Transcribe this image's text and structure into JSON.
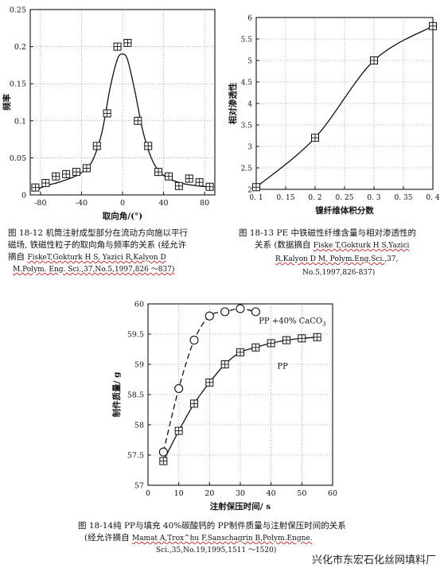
{
  "chart_data": [
    {
      "type": "line",
      "ylabel": "频率",
      "xlabel": "取向角/(°)",
      "xlim": [
        -90,
        90
      ],
      "ylim": [
        0,
        0.25
      ],
      "xticks": [
        -80,
        -40,
        0,
        40,
        80
      ],
      "yticks": [
        0,
        0.05,
        0.1,
        0.15,
        0.2,
        0.25
      ],
      "xtick_labels": [
        "-80",
        "-40",
        "0",
        "40",
        "80"
      ],
      "ytick_labels": [
        "0",
        "0.05",
        "0.1",
        "0.15",
        "0.2",
        "0.25"
      ],
      "series": [
        {
          "marker": "square-cross",
          "x": [
            -85,
            -75,
            -65,
            -55,
            -45,
            -35,
            -25,
            -15,
            -5,
            5,
            15,
            25,
            35,
            45,
            55,
            65,
            75,
            85
          ],
          "y": [
            0.01,
            0.016,
            0.025,
            0.028,
            0.031,
            0.036,
            0.066,
            0.11,
            0.2,
            0.205,
            0.1,
            0.066,
            0.031,
            0.025,
            0.012,
            0.022,
            0.017,
            0.011
          ]
        }
      ],
      "curve": {
        "x": [
          -88,
          -75,
          -60,
          -45,
          -35,
          -28,
          -20,
          -12,
          -5,
          0,
          5,
          12,
          20,
          28,
          35,
          45,
          60,
          75,
          88
        ],
        "y": [
          0.005,
          0.012,
          0.018,
          0.026,
          0.036,
          0.05,
          0.085,
          0.145,
          0.183,
          0.19,
          0.182,
          0.14,
          0.085,
          0.05,
          0.033,
          0.022,
          0.015,
          0.012,
          0.01
        ]
      },
      "caption": {
        "lines": [
          "图 18-12 机筒注射成型部分在流动方向施以平行",
          "磁场, 铁磁性粒子的取向角与频率的关系 (经允许",
          "摘自"
        ],
        "ref_underlined": "FiskeT,Gokturk H S, Yazici R,Kalyon D",
        "ref_line2": "M.Polym. Eng. Sci.,37,No.5,1997,826 ～837)"
      }
    },
    {
      "type": "line",
      "ylabel": "相对渗透性",
      "xlabel": "镍纤维体积分数",
      "xlim": [
        0.1,
        0.4
      ],
      "ylim": [
        2,
        6
      ],
      "xticks": [
        0.1,
        0.15,
        0.2,
        0.25,
        0.3,
        0.35,
        0.4
      ],
      "yticks": [
        2,
        2.5,
        3,
        3.5,
        4,
        4.5,
        5,
        5.5,
        6
      ],
      "xtick_labels": [
        "0. 1",
        "0. 15",
        "0. 2",
        "0. 25",
        "0. 3",
        "0. 35",
        "0. 4"
      ],
      "ytick_labels": [
        "2",
        "2.5",
        "3",
        "3.5",
        "4",
        "4.5",
        "5",
        "5.5",
        "6"
      ],
      "series": [
        {
          "marker": "square-cross",
          "x": [
            0.1,
            0.2,
            0.3,
            0.4
          ],
          "y": [
            2.05,
            3.2,
            5.0,
            5.8
          ]
        }
      ],
      "caption": {
        "line1": "图 18-13 PE 中铁磁性纤维含量与相对渗透性的",
        "line2_prefix": "关系 (数据摘自",
        "ref_underlined": "Fiske T,Gokturk H S,Yazici",
        "ref_line3_underlined": "R,Kalyon D M, Polym.Eng.Sci.",
        "ref_line3_rest": ",37,",
        "ref_line4": "No.5,1997,826-837)"
      }
    },
    {
      "type": "line",
      "ylabel": "制件质量/ g",
      "xlabel": "注射保压时间/ s",
      "xlim": [
        0,
        60
      ],
      "ylim": [
        57,
        60
      ],
      "xticks": [
        0,
        10,
        20,
        30,
        40,
        50,
        60
      ],
      "yticks": [
        57,
        57.5,
        58,
        58.5,
        59,
        59.5,
        60
      ],
      "xtick_labels": [
        "0",
        "10",
        "20",
        "30",
        "40",
        "50",
        "60"
      ],
      "ytick_labels": [
        "57",
        "57.5",
        "58",
        "58.5",
        "59",
        "59.5",
        "60"
      ],
      "series": [
        {
          "name": "PP +40% CaCO3",
          "label_main": "PP +40% CaCO",
          "label_sub": "3",
          "marker": "circle",
          "dash": true,
          "x": [
            5,
            10,
            15,
            20,
            25,
            30,
            35
          ],
          "y": [
            57.55,
            58.6,
            59.4,
            59.8,
            59.87,
            59.92,
            59.87
          ]
        },
        {
          "name": "PP",
          "label_main": "PP",
          "marker": "square-cross",
          "dash": false,
          "x": [
            5,
            10,
            15,
            20,
            25,
            30,
            35,
            40,
            45,
            50,
            55
          ],
          "y": [
            57.4,
            57.9,
            58.35,
            58.7,
            59.0,
            59.2,
            59.28,
            59.35,
            59.4,
            59.43,
            59.45
          ]
        }
      ],
      "caption": {
        "line1": "图 18-14纯 PP与填充 40%碳酸钙的 PP制件质量与注射保压时间的关系",
        "line2_prefix": "(经允许摘自",
        "ref_underlined": "Mamat A,Trox^hu F,Sanschagrin B,Polym.Engne.",
        "ref_line3": "Sci.,35,No.19,1995,1511 ～1520)"
      }
    }
  ],
  "watermark": "兴化市东宏石化丝网填料厂"
}
